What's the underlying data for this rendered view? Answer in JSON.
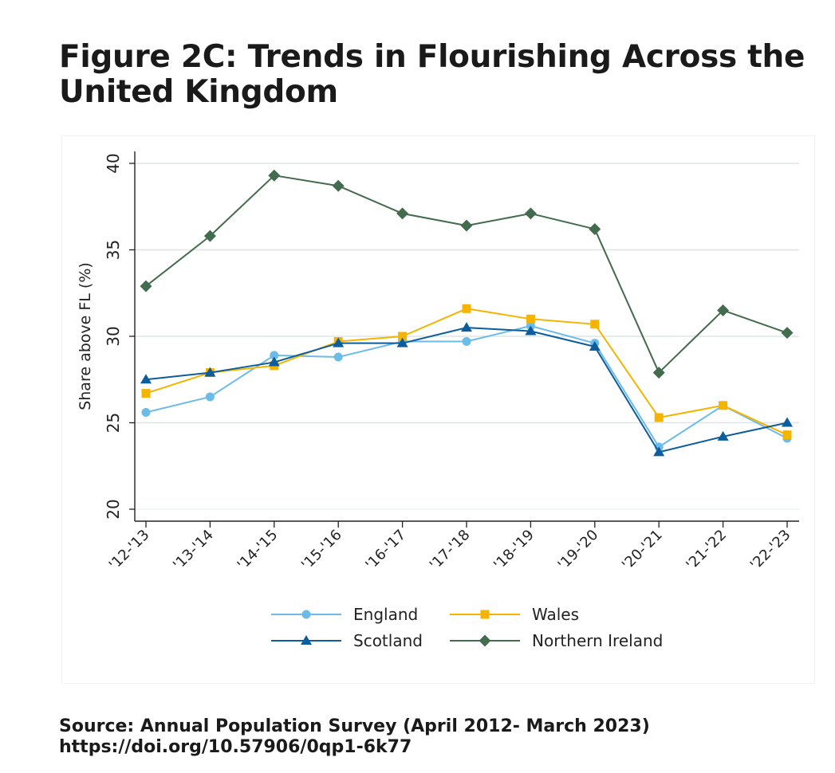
{
  "title": "Figure 2C: Trends in Flourishing Across the United Kingdom",
  "source": {
    "line1": "Source: Annual Population Survey (April 2012- March 2023)",
    "line2": "https://doi.org/10.57906/0qp1-6k77"
  },
  "chart_data": {
    "type": "line",
    "title": "Figure 2C: Trends in Flourishing Across the United Kingdom",
    "xlabel": "",
    "ylabel": "Share above FL (%)",
    "ylim": [
      20,
      40
    ],
    "yticks": [
      20,
      25,
      30,
      35,
      40
    ],
    "grid": true,
    "legend_position": "bottom",
    "categories": [
      "'12-'13",
      "'13-'14",
      "'14-'15",
      "'15-'16",
      "'16-'17",
      "'17-'18",
      "'18-'19",
      "'19-'20",
      "'20-'21",
      "'21-'22",
      "'22-'23"
    ],
    "series": [
      {
        "name": "England",
        "color": "#6cbbe9",
        "marker": "circle",
        "values": [
          25.6,
          26.5,
          28.9,
          28.8,
          29.7,
          29.7,
          30.6,
          29.6,
          23.6,
          26.0,
          24.1
        ]
      },
      {
        "name": "Wales",
        "color": "#f5b400",
        "marker": "square",
        "values": [
          26.7,
          27.9,
          28.3,
          29.7,
          30.0,
          31.6,
          31.0,
          30.7,
          25.3,
          26.0,
          24.3
        ]
      },
      {
        "name": "Scotland",
        "color": "#0b5d9e",
        "marker": "triangle",
        "values": [
          27.5,
          27.9,
          28.5,
          29.6,
          29.6,
          30.5,
          30.3,
          29.4,
          23.3,
          24.2,
          25.0
        ]
      },
      {
        "name": "Northern Ireland",
        "color": "#436b4d",
        "marker": "diamond",
        "values": [
          32.9,
          35.8,
          39.3,
          38.7,
          37.1,
          36.4,
          37.1,
          36.2,
          27.9,
          31.5,
          30.2
        ]
      }
    ],
    "legend_order": [
      "England",
      "Wales",
      "Scotland",
      "Northern Ireland"
    ]
  }
}
